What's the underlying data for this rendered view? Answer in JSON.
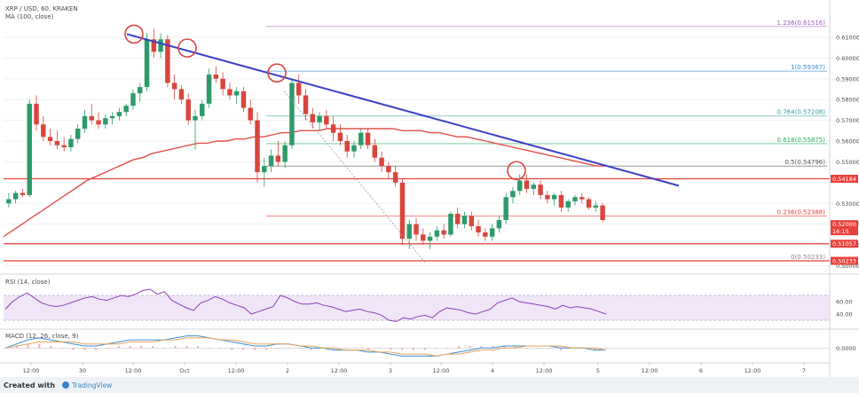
{
  "header": {
    "symbol_title": "XRP / USD, 60, KRAKEN",
    "ma_label": "MA (100, close)",
    "rsi_label": "RSI (14, close)",
    "macd_label": "MACD (12, 26, close, 9)"
  },
  "footer": {
    "created_with": "Created with",
    "brand": "TradingView"
  },
  "colors": {
    "bull": "#2e9a6b",
    "bear": "#d9453d",
    "ma": "#e0504a",
    "trendline": "#3a3fc4",
    "support": "#e8413a",
    "rsi_fill": "#e9dcf3",
    "rsi_line": "#8a3fb8",
    "macd_line": "#3a8fd6",
    "signal_line": "#e8a35a"
  },
  "chart_data": {
    "type": "candlestick",
    "title": "XRP / USD, 60, KRAKEN",
    "ylim": [
      0.4985,
      0.6245
    ],
    "y_ticks": [
      0.61,
      0.6,
      0.59,
      0.58,
      0.57,
      0.56,
      0.55,
      0.53,
      0.52,
      0.51,
      0.5
    ],
    "x_tick_labels": [
      "12:00",
      "30",
      "12:00",
      "Oct",
      "12:00",
      "2",
      "12:00",
      "3",
      "12:00",
      "4",
      "12:00",
      "5",
      "12:00",
      "6",
      "12:00",
      "7"
    ],
    "price_labels": [
      {
        "value": "0.54184",
        "color": "#e8413a"
      },
      {
        "value": "0.52000",
        "color": "#e8413a"
      },
      {
        "value": "16:15",
        "color": "#e8413a"
      },
      {
        "value": "0.51057",
        "color": "#e8413a"
      },
      {
        "value": "0.50233",
        "color": "#e8413a"
      }
    ],
    "fib_levels": [
      {
        "label": "1.236(0.61516)",
        "value": 0.61516,
        "color": "#9b59b6"
      },
      {
        "label": "1(0.59367)",
        "value": 0.59367,
        "color": "#3a8fd6"
      },
      {
        "label": "0.764(0.57208)",
        "value": 0.57208,
        "color": "#2aa198"
      },
      {
        "label": "0.618(0.55875)",
        "value": 0.55875,
        "color": "#27ae60"
      },
      {
        "label": "0.5(0.54796)",
        "value": 0.54796,
        "color": "#555555"
      },
      {
        "label": "0.236(0.52388)",
        "value": 0.52388,
        "color": "#e8413a"
      },
      {
        "label": "0(0.50233)",
        "value": 0.50233,
        "color": "#888888"
      }
    ],
    "support_lines": [
      0.54184,
      0.51057,
      0.50233
    ],
    "trendline": {
      "from": [
        0,
        0.6115
      ],
      "to": [
        1,
        0.5385
      ]
    },
    "candles": [
      [
        0.53,
        0.535,
        0.528,
        0.532
      ],
      [
        0.532,
        0.536,
        0.53,
        0.535
      ],
      [
        0.535,
        0.537,
        0.533,
        0.534
      ],
      [
        0.534,
        0.58,
        0.533,
        0.578
      ],
      [
        0.578,
        0.582,
        0.565,
        0.568
      ],
      [
        0.568,
        0.572,
        0.56,
        0.562
      ],
      [
        0.562,
        0.566,
        0.558,
        0.56
      ],
      [
        0.56,
        0.565,
        0.556,
        0.558
      ],
      [
        0.558,
        0.562,
        0.555,
        0.557
      ],
      [
        0.557,
        0.563,
        0.555,
        0.561
      ],
      [
        0.561,
        0.568,
        0.559,
        0.566
      ],
      [
        0.566,
        0.575,
        0.564,
        0.572
      ],
      [
        0.572,
        0.578,
        0.568,
        0.57
      ],
      [
        0.57,
        0.574,
        0.566,
        0.568
      ],
      [
        0.568,
        0.573,
        0.566,
        0.571
      ],
      [
        0.571,
        0.574,
        0.568,
        0.572
      ],
      [
        0.572,
        0.576,
        0.57,
        0.574
      ],
      [
        0.574,
        0.578,
        0.572,
        0.577
      ],
      [
        0.577,
        0.585,
        0.575,
        0.583
      ],
      [
        0.583,
        0.588,
        0.579,
        0.586
      ],
      [
        0.586,
        0.612,
        0.584,
        0.609
      ],
      [
        0.609,
        0.614,
        0.6,
        0.603
      ],
      [
        0.603,
        0.612,
        0.6,
        0.609
      ],
      [
        0.609,
        0.611,
        0.586,
        0.588
      ],
      [
        0.588,
        0.592,
        0.58,
        0.585
      ],
      [
        0.585,
        0.587,
        0.578,
        0.58
      ],
      [
        0.58,
        0.583,
        0.568,
        0.57
      ],
      [
        0.57,
        0.575,
        0.556,
        0.572
      ],
      [
        0.572,
        0.58,
        0.57,
        0.578
      ],
      [
        0.578,
        0.595,
        0.576,
        0.592
      ],
      [
        0.592,
        0.596,
        0.588,
        0.59
      ],
      [
        0.59,
        0.593,
        0.582,
        0.585
      ],
      [
        0.585,
        0.588,
        0.58,
        0.582
      ],
      [
        0.582,
        0.586,
        0.578,
        0.584
      ],
      [
        0.584,
        0.586,
        0.574,
        0.576
      ],
      [
        0.576,
        0.58,
        0.568,
        0.57
      ],
      [
        0.57,
        0.574,
        0.54,
        0.545
      ],
      [
        0.545,
        0.552,
        0.538,
        0.548
      ],
      [
        0.548,
        0.556,
        0.545,
        0.553
      ],
      [
        0.553,
        0.56,
        0.548,
        0.55
      ],
      [
        0.55,
        0.56,
        0.547,
        0.558
      ],
      [
        0.558,
        0.59,
        0.556,
        0.588
      ],
      [
        0.588,
        0.592,
        0.578,
        0.582
      ],
      [
        0.582,
        0.585,
        0.57,
        0.573
      ],
      [
        0.573,
        0.576,
        0.566,
        0.569
      ],
      [
        0.569,
        0.574,
        0.565,
        0.572
      ],
      [
        0.572,
        0.575,
        0.566,
        0.568
      ],
      [
        0.568,
        0.572,
        0.56,
        0.564
      ],
      [
        0.564,
        0.568,
        0.558,
        0.56
      ],
      [
        0.56,
        0.563,
        0.552,
        0.555
      ],
      [
        0.555,
        0.56,
        0.552,
        0.558
      ],
      [
        0.558,
        0.566,
        0.556,
        0.564
      ],
      [
        0.564,
        0.566,
        0.556,
        0.558
      ],
      [
        0.558,
        0.561,
        0.55,
        0.552
      ],
      [
        0.552,
        0.555,
        0.545,
        0.548
      ],
      [
        0.548,
        0.55,
        0.542,
        0.545
      ],
      [
        0.545,
        0.548,
        0.538,
        0.54
      ],
      [
        0.54,
        0.542,
        0.51,
        0.513
      ],
      [
        0.513,
        0.522,
        0.508,
        0.52
      ],
      [
        0.52,
        0.523,
        0.512,
        0.515
      ],
      [
        0.515,
        0.518,
        0.51,
        0.512
      ],
      [
        0.512,
        0.516,
        0.508,
        0.514
      ],
      [
        0.514,
        0.519,
        0.512,
        0.517
      ],
      [
        0.517,
        0.52,
        0.513,
        0.515
      ],
      [
        0.515,
        0.526,
        0.514,
        0.525
      ],
      [
        0.525,
        0.528,
        0.518,
        0.52
      ],
      [
        0.52,
        0.526,
        0.518,
        0.524
      ],
      [
        0.524,
        0.526,
        0.517,
        0.519
      ],
      [
        0.519,
        0.522,
        0.514,
        0.516
      ],
      [
        0.516,
        0.518,
        0.512,
        0.514
      ],
      [
        0.514,
        0.52,
        0.512,
        0.518
      ],
      [
        0.518,
        0.524,
        0.516,
        0.522
      ],
      [
        0.522,
        0.535,
        0.52,
        0.533
      ],
      [
        0.533,
        0.538,
        0.53,
        0.536
      ],
      [
        0.536,
        0.544,
        0.534,
        0.541
      ],
      [
        0.541,
        0.544,
        0.535,
        0.537
      ],
      [
        0.537,
        0.54,
        0.534,
        0.539
      ],
      [
        0.539,
        0.541,
        0.532,
        0.534
      ],
      [
        0.534,
        0.536,
        0.53,
        0.532
      ],
      [
        0.532,
        0.535,
        0.529,
        0.534
      ],
      [
        0.534,
        0.536,
        0.526,
        0.528
      ],
      [
        0.528,
        0.532,
        0.526,
        0.531
      ],
      [
        0.531,
        0.534,
        0.529,
        0.533
      ],
      [
        0.533,
        0.535,
        0.53,
        0.532
      ],
      [
        0.532,
        0.533,
        0.527,
        0.528
      ],
      [
        0.528,
        0.531,
        0.526,
        0.529
      ],
      [
        0.529,
        0.53,
        0.521,
        0.522
      ]
    ],
    "ma100": [
      0.514,
      0.517,
      0.52,
      0.523,
      0.526,
      0.529,
      0.532,
      0.535,
      0.538,
      0.541,
      0.543,
      0.545,
      0.547,
      0.549,
      0.551,
      0.552,
      0.554,
      0.555,
      0.556,
      0.557,
      0.558,
      0.559,
      0.559,
      0.56,
      0.56,
      0.561,
      0.561,
      0.562,
      0.562,
      0.563,
      0.564,
      0.564,
      0.565,
      0.565,
      0.565,
      0.566,
      0.566,
      0.566,
      0.566,
      0.566,
      0.566,
      0.566,
      0.566,
      0.565,
      0.565,
      0.565,
      0.564,
      0.564,
      0.563,
      0.562,
      0.562,
      0.561,
      0.56,
      0.559,
      0.558,
      0.557,
      0.556,
      0.555,
      0.554,
      0.553,
      0.552,
      0.551,
      0.55,
      0.549,
      0.548,
      0.548
    ],
    "rsi": {
      "ylim": [
        20,
        100
      ],
      "bands": [
        70,
        30
      ],
      "ticks": [
        60,
        40
      ],
      "values": [
        48,
        60,
        68,
        74,
        66,
        58,
        54,
        52,
        54,
        58,
        62,
        66,
        68,
        64,
        62,
        66,
        70,
        68,
        72,
        78,
        80,
        72,
        76,
        62,
        56,
        50,
        46,
        58,
        62,
        68,
        64,
        58,
        54,
        50,
        40,
        44,
        48,
        52,
        70,
        66,
        60,
        56,
        56,
        58,
        54,
        52,
        48,
        44,
        46,
        48,
        44,
        42,
        38,
        30,
        28,
        34,
        32,
        36,
        38,
        34,
        44,
        50,
        48,
        46,
        42,
        40,
        44,
        48,
        58,
        62,
        66,
        60,
        58,
        56,
        54,
        52,
        48,
        54,
        50,
        52,
        50,
        48,
        44,
        40
      ]
    },
    "macd": {
      "ylim": [
        -0.006,
        0.008
      ],
      "ticks": [
        0.0
      ],
      "tick_labels": [
        "0.0000"
      ],
      "macd": [
        0.0,
        0.002,
        0.004,
        0.005,
        0.004,
        0.003,
        0.002,
        0.001,
        0.001,
        0.002,
        0.003,
        0.004,
        0.004,
        0.004,
        0.004,
        0.005,
        0.006,
        0.006,
        0.005,
        0.004,
        0.003,
        0.002,
        0.001,
        0.001,
        0.002,
        0.002,
        0.001,
        0.0,
        0.0,
        -0.001,
        -0.001,
        -0.001,
        -0.002,
        -0.002,
        -0.003,
        -0.004,
        -0.004,
        -0.004,
        -0.004,
        -0.003,
        -0.002,
        -0.001,
        0.0,
        0.0,
        0.001,
        0.001,
        0.001,
        0.001,
        0.001,
        0.0,
        0.0,
        0.0,
        -0.001,
        -0.001
      ],
      "signal": [
        0.0,
        0.001,
        0.002,
        0.003,
        0.003,
        0.003,
        0.003,
        0.002,
        0.002,
        0.002,
        0.002,
        0.003,
        0.003,
        0.003,
        0.004,
        0.004,
        0.005,
        0.005,
        0.005,
        0.004,
        0.004,
        0.003,
        0.002,
        0.002,
        0.002,
        0.002,
        0.001,
        0.001,
        0.0,
        0.0,
        -0.001,
        -0.001,
        -0.001,
        -0.002,
        -0.002,
        -0.003,
        -0.003,
        -0.003,
        -0.004,
        -0.003,
        -0.003,
        -0.002,
        -0.001,
        -0.001,
        0.0,
        0.0,
        0.001,
        0.001,
        0.001,
        0.001,
        0.0,
        0.0,
        0.0,
        -0.001
      ]
    }
  }
}
